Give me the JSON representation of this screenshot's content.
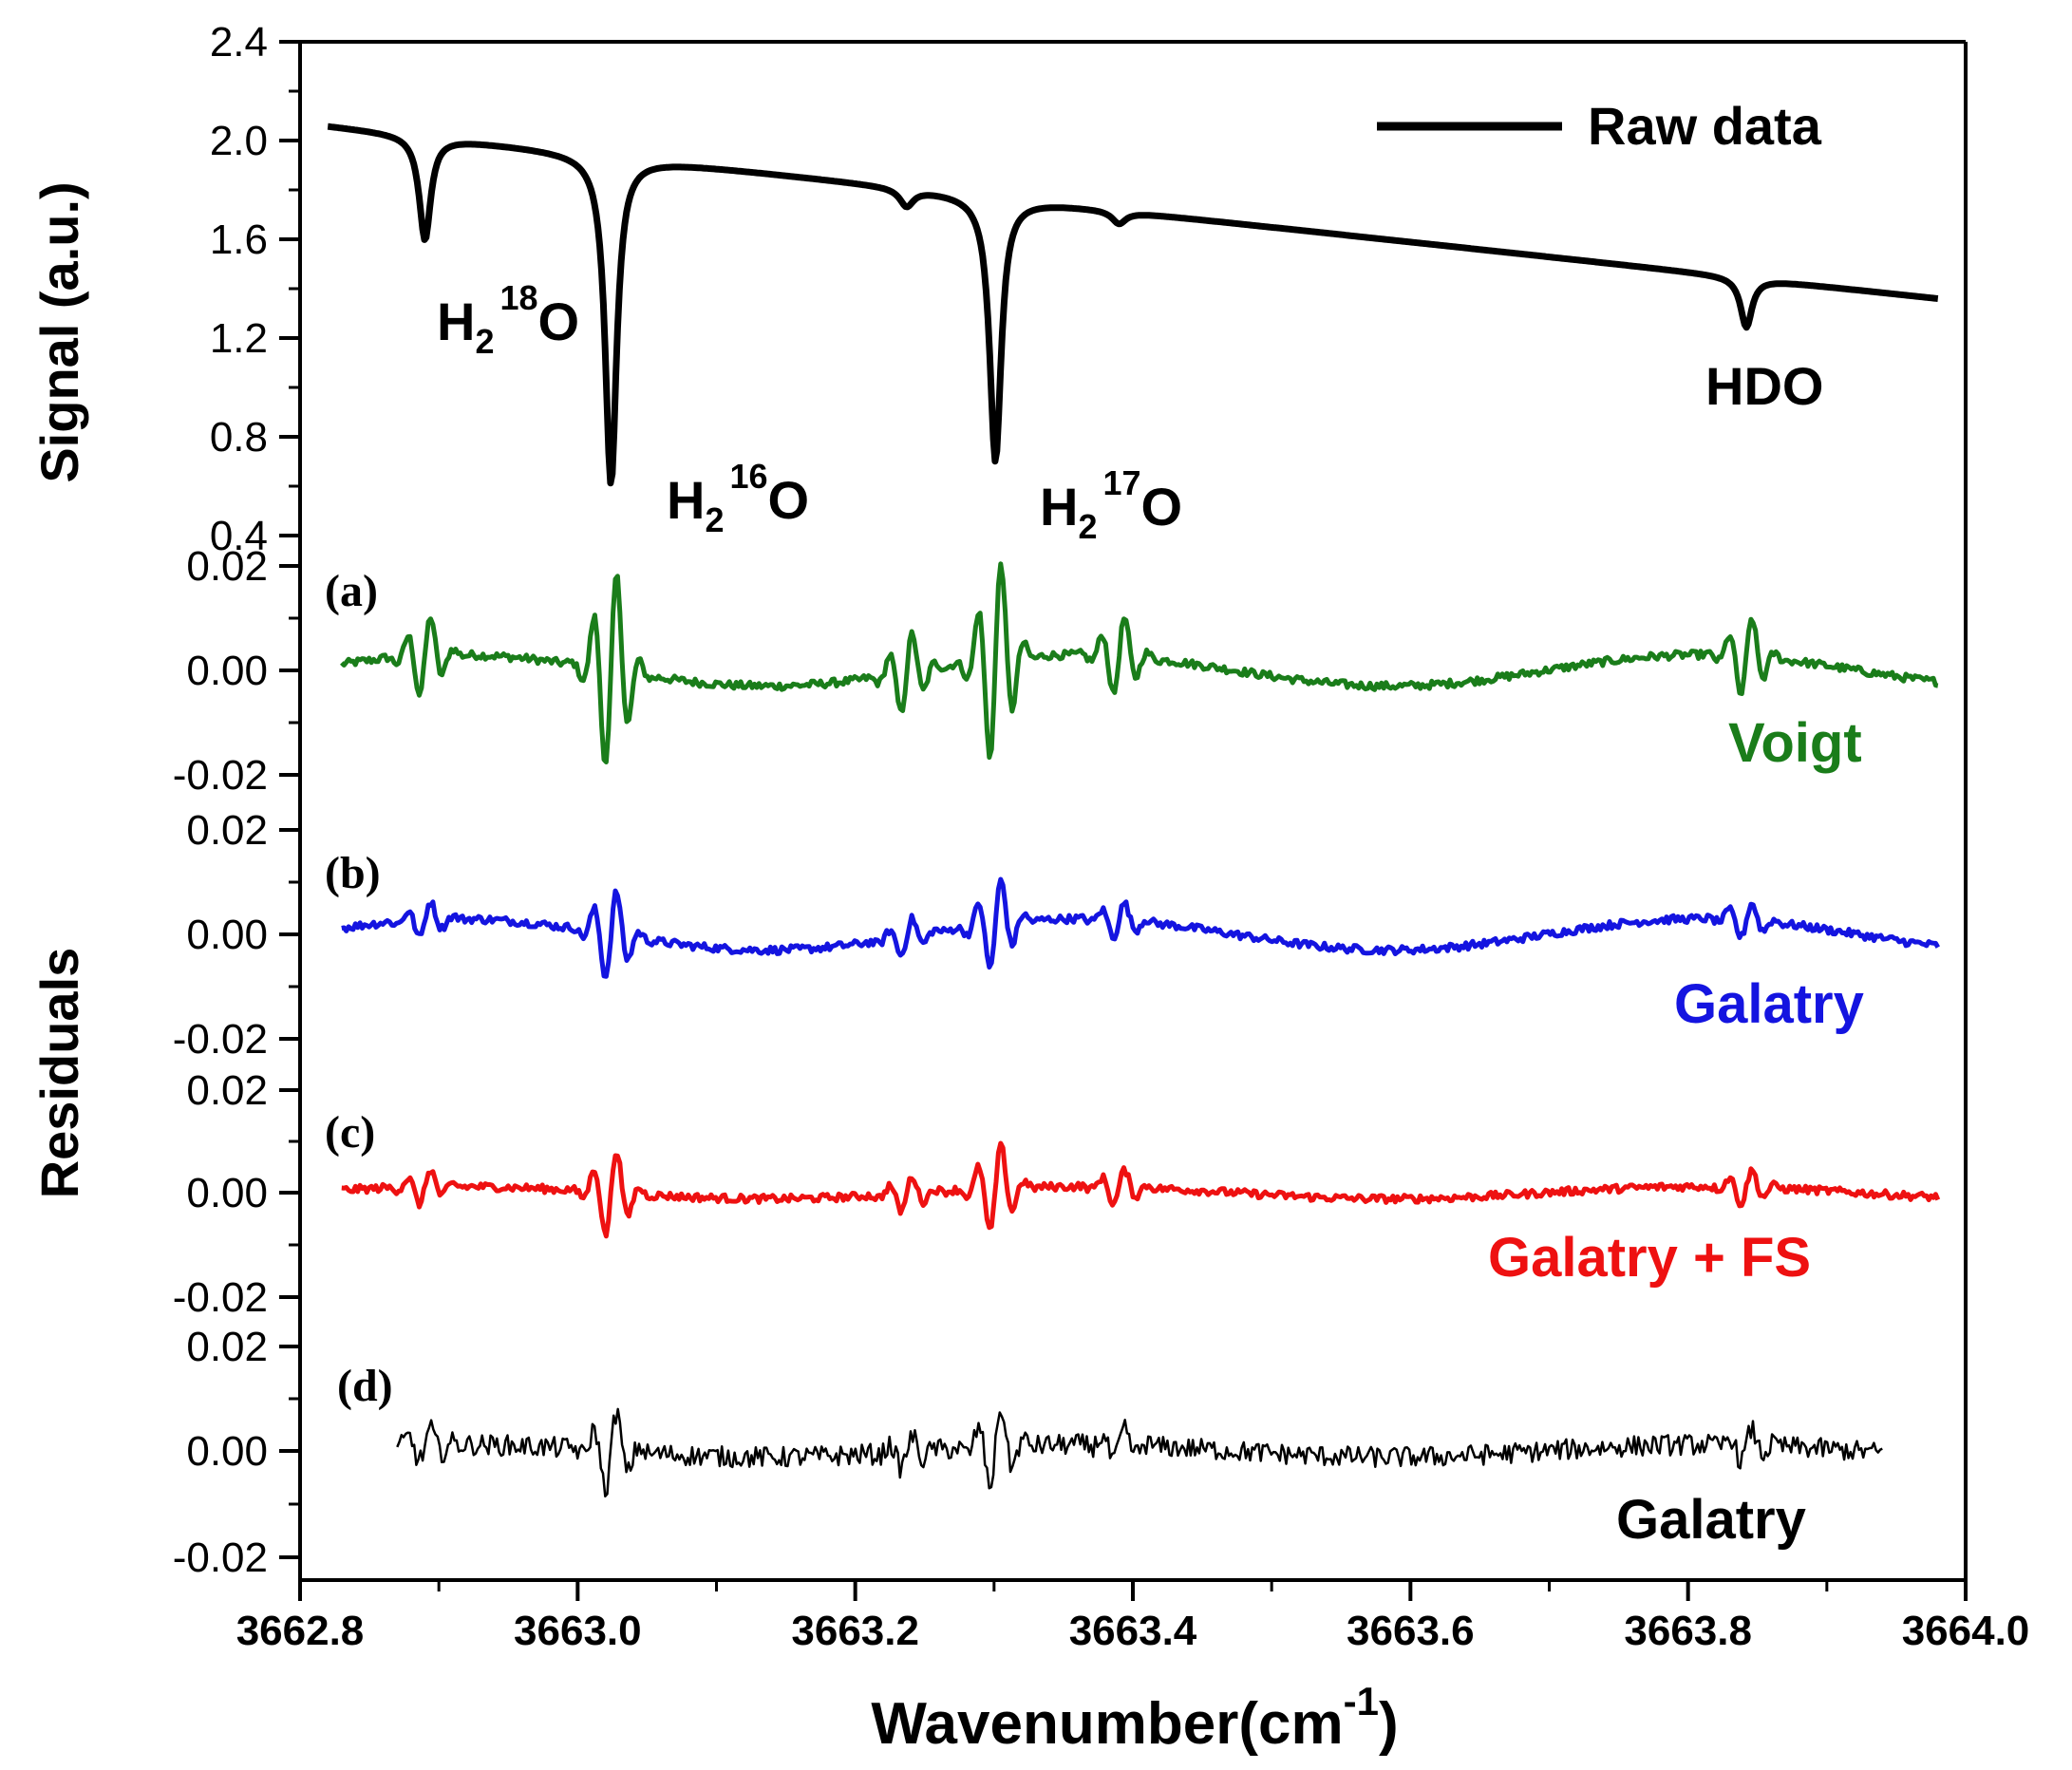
{
  "chart_data": {
    "type": "line",
    "x_axis": {
      "label": "Wavenumber(cm",
      "label_sup": "-1",
      "label_close": ")",
      "range": [
        3662.8,
        3664.0
      ],
      "ticks": [
        3662.8,
        3663.0,
        3663.2,
        3663.4,
        3663.6,
        3663.8,
        3664.0
      ],
      "tick_labels": [
        "3662.8",
        "3663.0",
        "3663.2",
        "3663.4",
        "3663.6",
        "3663.8",
        "3664.0"
      ]
    },
    "top_panel": {
      "ylabel": "Signal (a.u.)",
      "ylim": [
        0.4,
        2.4
      ],
      "ticks": [
        0.4,
        0.8,
        1.2,
        1.6,
        2.0,
        2.4
      ],
      "tick_labels": [
        "0.4",
        "0.8",
        "1.2",
        "1.6",
        "2.0",
        "2.4"
      ],
      "legend": {
        "label": "Raw data",
        "position": "top-right"
      },
      "series": {
        "name": "Raw data",
        "color": "#000000",
        "x_start": 3662.82,
        "x_end": 3663.98,
        "y_start": 2.06,
        "y_end": 1.36,
        "peaks": [
          {
            "center": 3662.89,
            "depth": 0.42,
            "width": 0.005
          },
          {
            "center": 3663.024,
            "depth": 1.33,
            "width": 0.005
          },
          {
            "center": 3663.237,
            "depth": 0.07,
            "width": 0.006
          },
          {
            "center": 3663.301,
            "depth": 1.07,
            "width": 0.005
          },
          {
            "center": 3663.39,
            "depth": 0.05,
            "width": 0.006
          },
          {
            "center": 3663.842,
            "depth": 0.2,
            "width": 0.005
          }
        ]
      },
      "annotations": [
        {
          "base": "H",
          "sub": "2",
          "sup": "18",
          "tail": "O"
        },
        {
          "base": "H",
          "sub": "2",
          "sup": "16",
          "tail": "O"
        },
        {
          "base": "H",
          "sub": "2",
          "sup": "17",
          "tail": "O"
        },
        {
          "base": "HDO",
          "sub": "",
          "sup": "",
          "tail": ""
        }
      ]
    },
    "residuals_ylabel": "Residuals",
    "residual_panels": [
      {
        "letter": "(a)",
        "name": "Voigt",
        "color": "#1a7d1a",
        "ylim": [
          -0.02,
          0.02
        ],
        "tick_labels": [
          "0.02",
          "0.00",
          "-0.02"
        ],
        "x_range": [
          3662.83,
          3663.98
        ],
        "amplitude": 0.02
      },
      {
        "letter": "(b)",
        "name": "Galatry",
        "color": "#1414e0",
        "ylim": [
          -0.02,
          0.02
        ],
        "tick_labels": [
          "0.02",
          "0.00",
          "-0.02"
        ],
        "x_range": [
          3662.83,
          3663.98
        ],
        "amplitude": 0.009
      },
      {
        "letter": "(c)",
        "name": "Galatry + FS",
        "color": "#ee1111",
        "ylim": [
          -0.02,
          0.02
        ],
        "tick_labels": [
          "0.02",
          "0.00",
          "-0.02"
        ],
        "x_range": [
          3662.83,
          3663.98
        ],
        "amplitude": 0.009
      },
      {
        "letter": "(d)",
        "name": "Galatry",
        "color": "#000000",
        "ylim": [
          -0.02,
          0.02
        ],
        "tick_labels": [
          "0.02",
          "0.00",
          "-0.02"
        ],
        "x_range": [
          3662.87,
          3663.94
        ],
        "amplitude": 0.008
      }
    ]
  }
}
